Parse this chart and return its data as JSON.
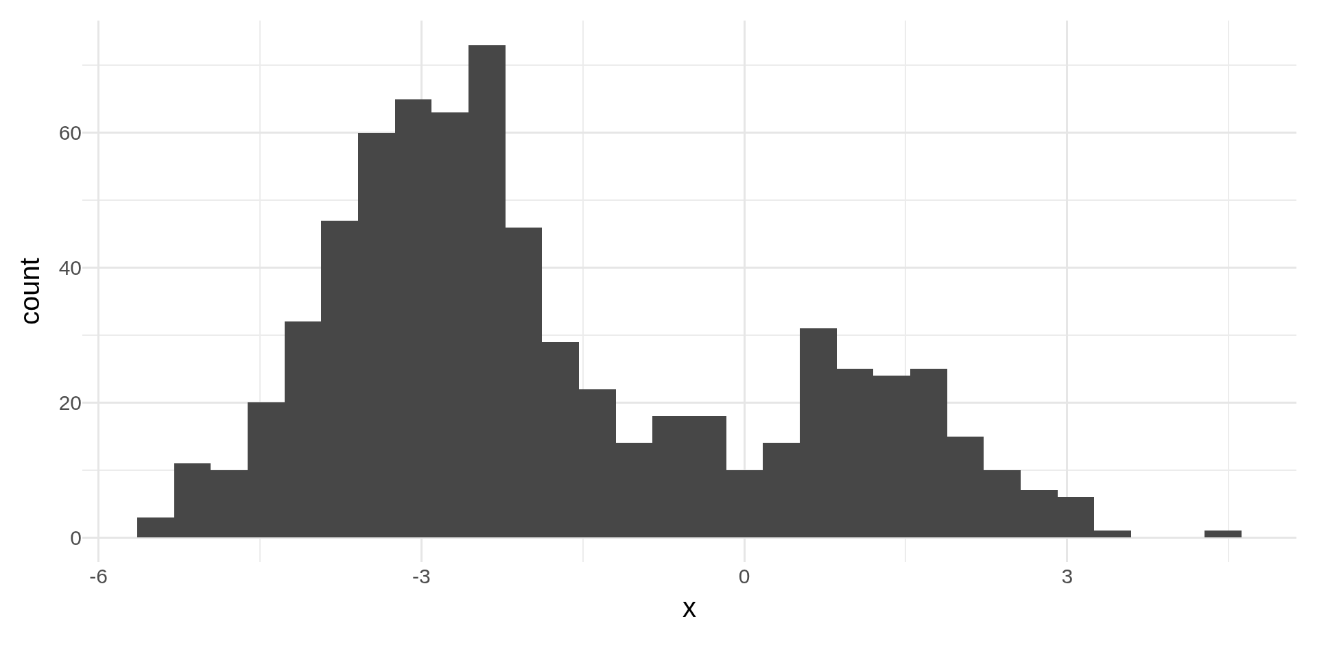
{
  "chart_data": {
    "type": "histogram",
    "xlabel": "x",
    "ylabel": "count",
    "bins": [
      -5.64,
      -5.298,
      -4.956,
      -4.614,
      -4.272,
      -3.93,
      -3.588,
      -3.246,
      -2.904,
      -2.562,
      -2.22,
      -1.878,
      -1.536,
      -1.194,
      -0.852,
      -0.51,
      -0.168,
      0.174,
      0.516,
      0.858,
      1.2,
      1.542,
      1.884,
      2.226,
      2.568,
      2.91,
      3.252,
      3.594,
      3.936,
      4.278,
      4.62
    ],
    "values": [
      3,
      11,
      10,
      20,
      32,
      47,
      60,
      65,
      63,
      73,
      46,
      29,
      22,
      14,
      18,
      18,
      10,
      14,
      31,
      25,
      24,
      25,
      15,
      10,
      7,
      6,
      1,
      0,
      0,
      1
    ],
    "color": "#474747",
    "xlim": [
      -6.15,
      5.13
    ],
    "xticks": [
      -6,
      -3,
      0,
      3
    ],
    "ylim": [
      -3.65,
      76.65
    ],
    "yticks": [
      0,
      20,
      40,
      60
    ],
    "grid": true
  }
}
